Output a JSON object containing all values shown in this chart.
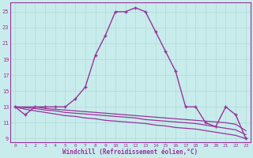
{
  "xlabel": "Windchill (Refroidissement éolien,°C)",
  "bg_color": "#c8ecec",
  "line_color": "#993399",
  "grid_color": "#b0d8d8",
  "ylim": [
    8.5,
    26.2
  ],
  "xlim": [
    -0.5,
    23.5
  ],
  "yticks": [
    9,
    11,
    13,
    15,
    17,
    19,
    21,
    23,
    25
  ],
  "xticks": [
    0,
    1,
    2,
    3,
    4,
    5,
    6,
    7,
    8,
    9,
    10,
    11,
    12,
    13,
    14,
    15,
    16,
    17,
    18,
    19,
    20,
    21,
    22,
    23
  ],
  "main_curve_x": [
    0,
    1,
    2,
    3,
    4,
    5,
    6,
    7,
    8,
    9,
    10,
    11,
    12,
    13,
    14,
    15,
    16,
    17,
    18,
    19,
    20,
    21,
    22,
    23
  ],
  "main_curve_y": [
    13,
    12,
    13,
    13,
    13,
    13,
    14,
    15.5,
    19.5,
    22,
    25,
    25,
    25.5,
    25,
    22.5,
    20,
    17.5,
    13,
    13,
    11,
    10.5,
    13,
    12,
    9
  ],
  "flat_line1_y": [
    13,
    13,
    13,
    12.8,
    12.7,
    12.6,
    12.5,
    12.4,
    12.3,
    12.2,
    12.1,
    12.0,
    11.9,
    11.8,
    11.7,
    11.6,
    11.5,
    11.4,
    11.3,
    11.2,
    11.1,
    11.0,
    10.8,
    10.0
  ],
  "flat_line2_y": [
    13,
    12.9,
    12.8,
    12.6,
    12.5,
    12.3,
    12.2,
    12.1,
    12.0,
    11.9,
    11.8,
    11.7,
    11.6,
    11.4,
    11.3,
    11.2,
    11.1,
    11.0,
    10.9,
    10.7,
    10.5,
    10.3,
    10.1,
    9.5
  ],
  "flat_line3_y": [
    13,
    12.7,
    12.5,
    12.3,
    12.1,
    11.9,
    11.8,
    11.6,
    11.5,
    11.3,
    11.2,
    11.1,
    11.0,
    10.9,
    10.7,
    10.6,
    10.4,
    10.3,
    10.2,
    10.0,
    9.8,
    9.6,
    9.4,
    9.0
  ]
}
